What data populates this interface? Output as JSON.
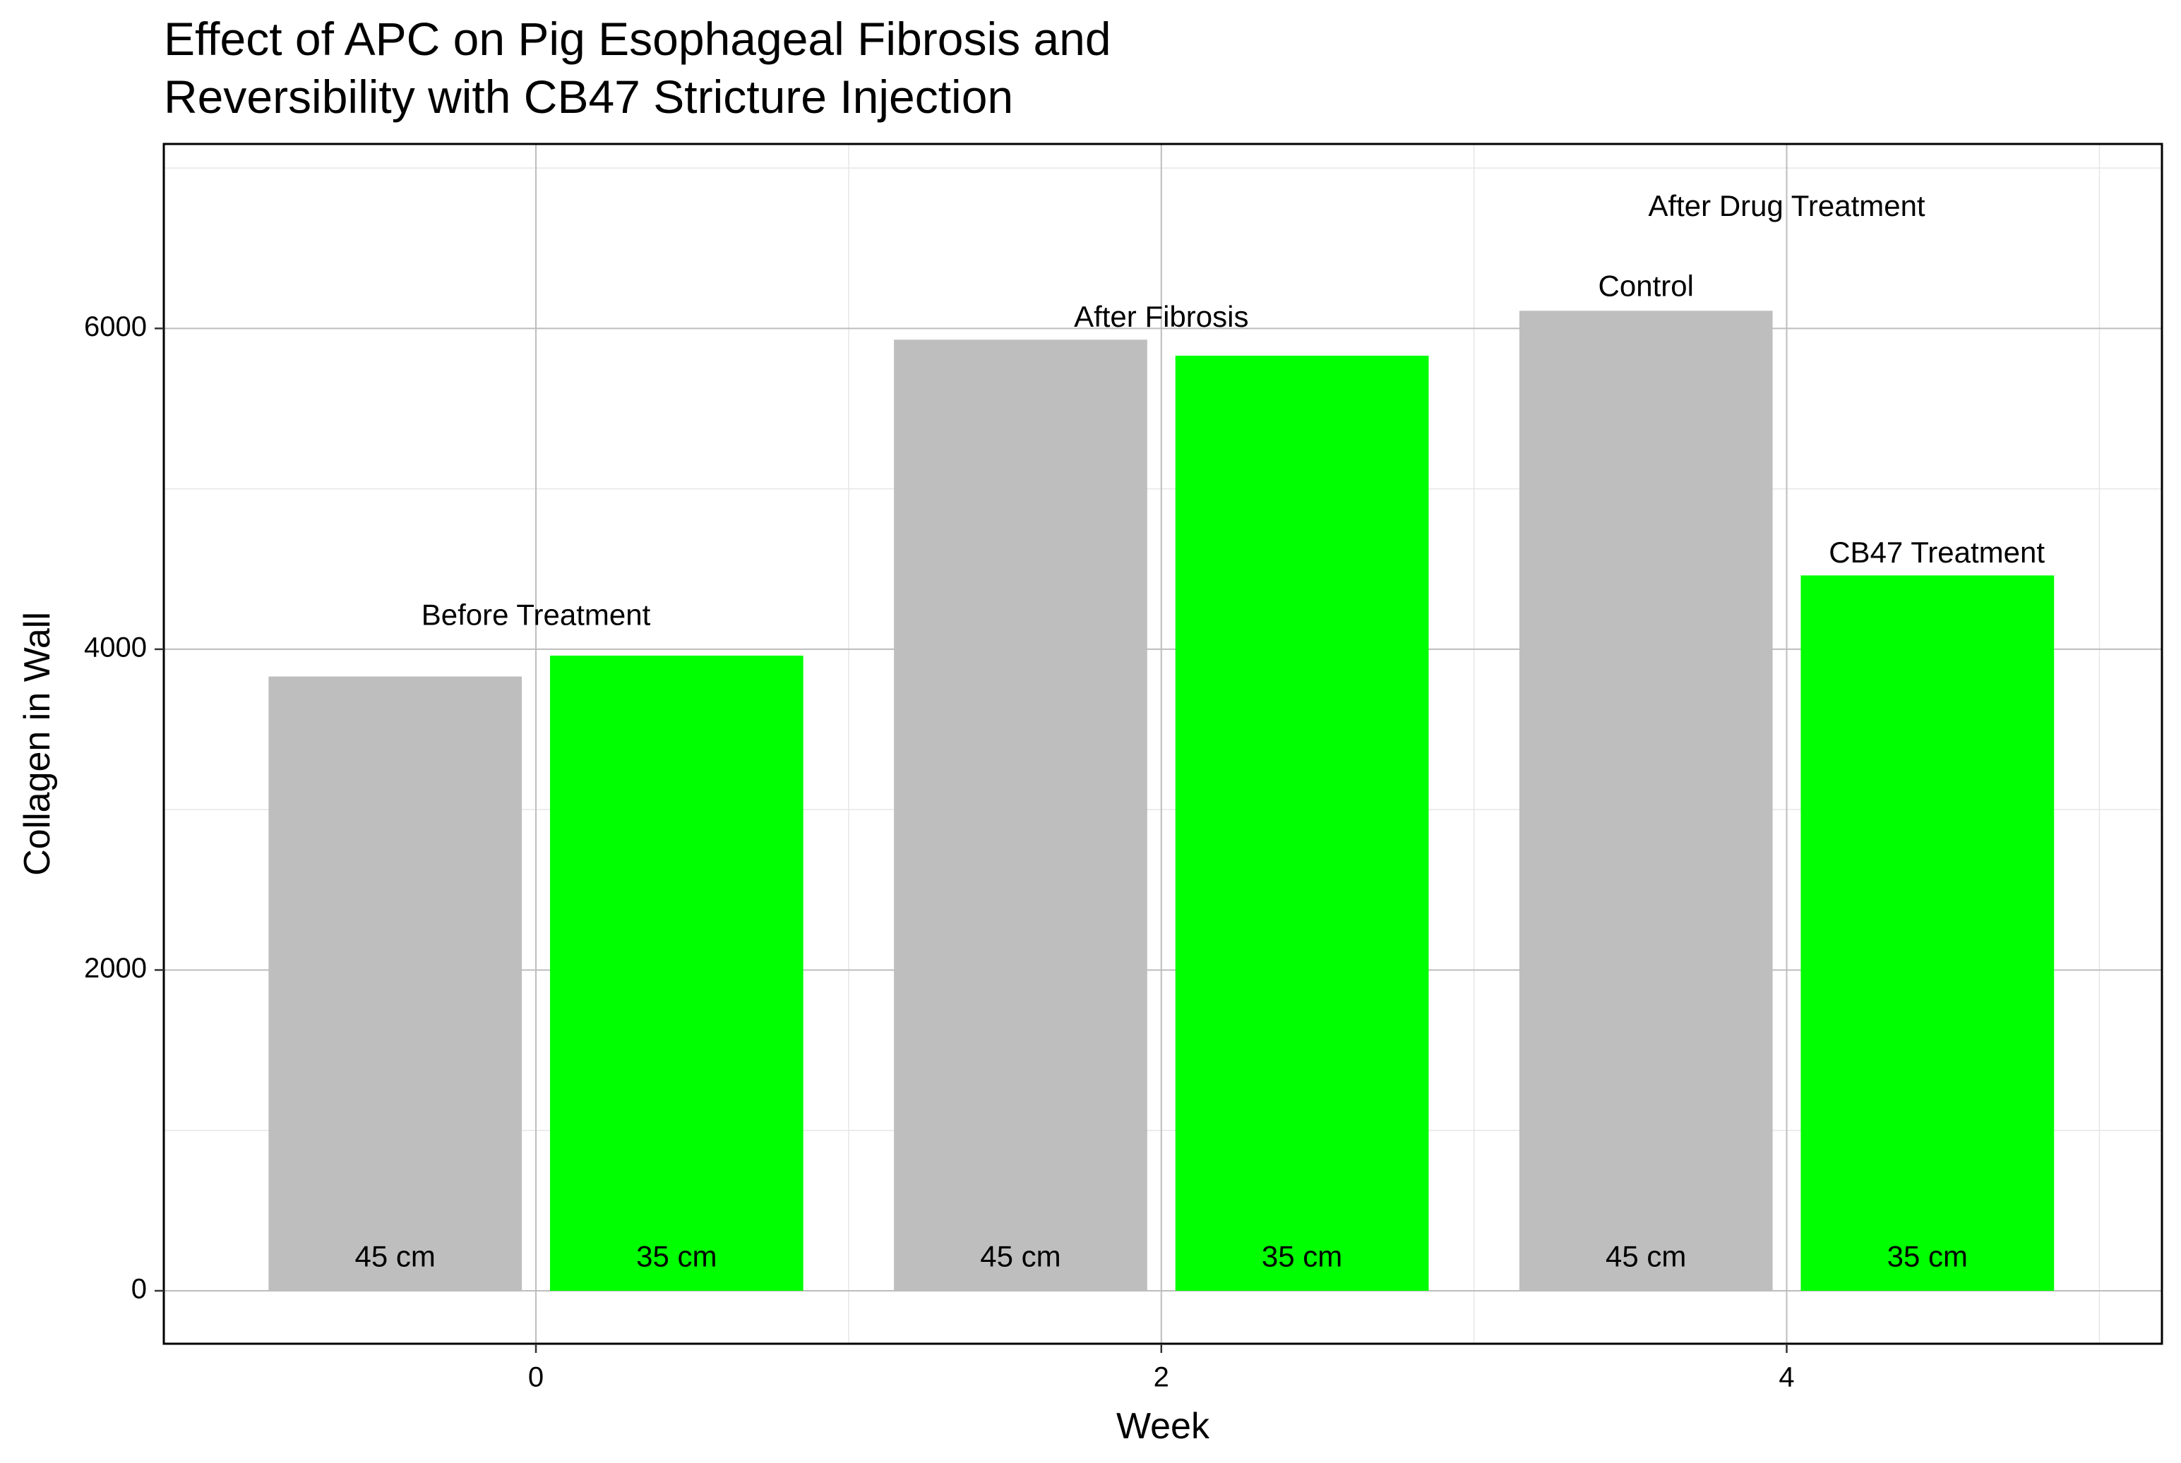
{
  "chart_data": {
    "type": "bar",
    "title": [
      "Effect of APC on Pig Esophageal Fibrosis and",
      "Reversibility with CB47 Stricture Injection"
    ],
    "xlabel": "Week",
    "ylabel": "Collagen in Wall",
    "xlim": [
      -1.19,
      5.2
    ],
    "ylim": [
      -330,
      7150
    ],
    "x_ticks": [
      0,
      2,
      4
    ],
    "y_ticks": [
      0,
      2000,
      4000,
      6000
    ],
    "x_minor_grid": [
      1,
      3,
      5
    ],
    "y_minor_grid": [
      1000,
      3000,
      5000,
      7000
    ],
    "grid": true,
    "bar_width": 0.81,
    "bar_label_y": 200,
    "series": [
      {
        "color": "#bebebe",
        "x": [
          -0.45,
          1.55,
          3.55
        ],
        "values": [
          3830,
          5930,
          6110
        ],
        "labels": [
          "45 cm",
          "45 cm",
          "45 cm"
        ]
      },
      {
        "color": "#00ff00",
        "x": [
          0.45,
          2.45,
          4.45
        ],
        "values": [
          3960,
          5830,
          4460
        ],
        "labels": [
          "35 cm",
          "35 cm",
          "35 cm"
        ]
      }
    ],
    "annotations": [
      {
        "text": "Before Treatment",
        "x": 0,
        "y": 4200
      },
      {
        "text": "After Fibrosis",
        "x": 2,
        "y": 6060
      },
      {
        "text": "Control",
        "x": 3.55,
        "y": 6250
      },
      {
        "text": "After Drug Treatment",
        "x": 4,
        "y": 6750
      },
      {
        "text": "CB47 Treatment",
        "x": 4.48,
        "y": 4590
      }
    ]
  }
}
